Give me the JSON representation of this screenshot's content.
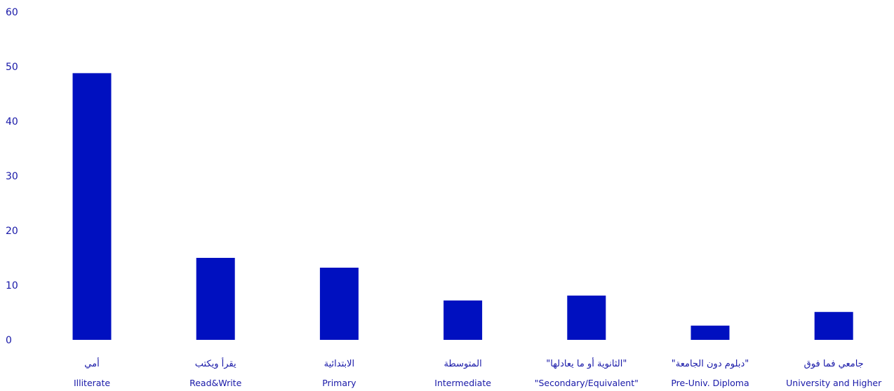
{
  "chart_data": {
    "type": "bar",
    "title": "",
    "xlabel": "",
    "ylabel": "",
    "ylim": [
      0,
      60
    ],
    "yticks": [
      0,
      10,
      20,
      30,
      40,
      50,
      60
    ],
    "grid": false,
    "bar_color": "#0010c0",
    "label_color": "#1818a8",
    "categories": [
      {
        "ar": "أمي",
        "en": "Illiterate"
      },
      {
        "ar": "يقرأ ويكتب",
        "en": "Read&Write"
      },
      {
        "ar": "الابتدائية",
        "en": "Primary"
      },
      {
        "ar": "المتوسطة",
        "en": "Intermediate"
      },
      {
        "ar": "\"الثانوية أو ما يعادلها\"",
        "en": "\"Secondary/Equivalent\""
      },
      {
        "ar": "\"دبلوم دون الجامعة\"",
        "en": "Pre-Univ. Diploma"
      },
      {
        "ar": "جامعي فما فوق",
        "en": "University and Higher"
      }
    ],
    "values": [
      48.8,
      15.0,
      13.2,
      7.2,
      8.1,
      2.6,
      5.1
    ]
  }
}
